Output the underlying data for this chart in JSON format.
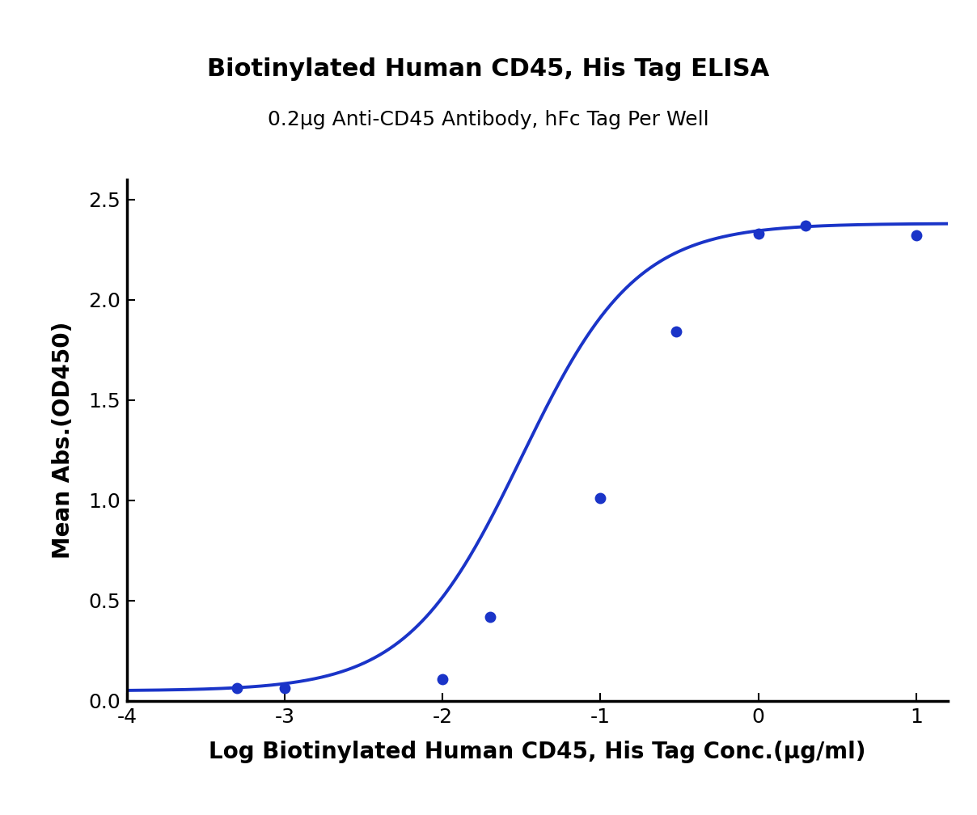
{
  "title": "Biotinylated Human CD45, His Tag ELISA",
  "subtitle": "0.2μg Anti-CD45 Antibody, hFc Tag Per Well",
  "xlabel": "Log Biotinylated Human CD45, His Tag Conc.(μg/ml)",
  "ylabel": "Mean Abs.(OD450)",
  "x_data_points": [
    -3.301,
    -3.0,
    -2.0,
    -1.699,
    -1.0,
    -0.523,
    0.0,
    0.301,
    1.0
  ],
  "y_data_points": [
    0.062,
    0.065,
    0.108,
    0.42,
    1.01,
    1.84,
    2.33,
    2.37,
    2.32
  ],
  "line_color": "#1a34c8",
  "marker_color": "#1a34c8",
  "xlim": [
    -4,
    1.2
  ],
  "ylim": [
    0.0,
    2.6
  ],
  "xticks": [
    -4,
    -3,
    -2,
    -1,
    0,
    1
  ],
  "yticks": [
    0.0,
    0.5,
    1.0,
    1.5,
    2.0,
    2.5
  ],
  "title_fontsize": 22,
  "subtitle_fontsize": 18,
  "axis_label_fontsize": 20,
  "tick_fontsize": 18,
  "background_color": "#ffffff",
  "marker_size": 10,
  "line_width": 2.8
}
